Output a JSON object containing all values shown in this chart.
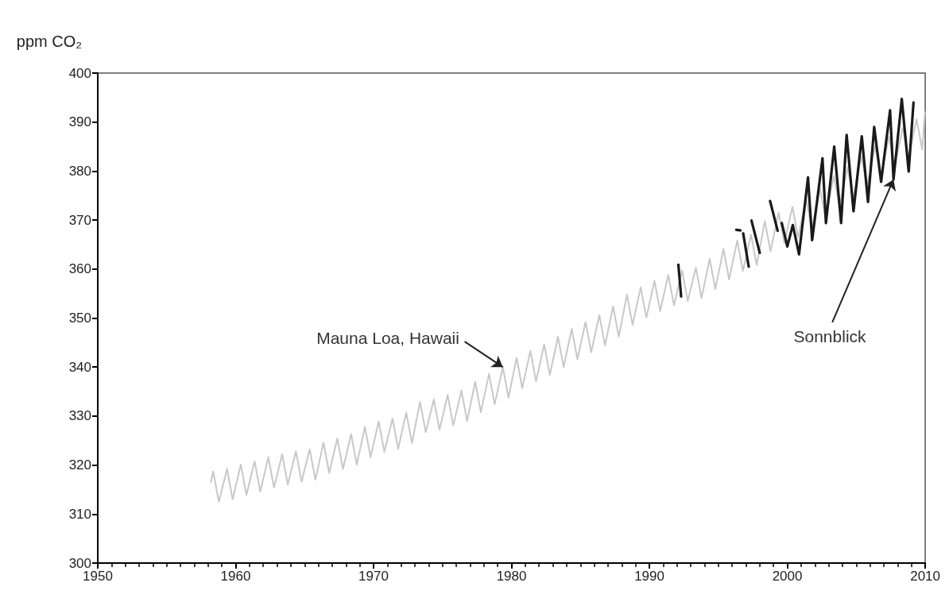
{
  "chart_data": {
    "type": "line",
    "ylabel": "ppm CO₂",
    "xlim": [
      1950,
      2010
    ],
    "xticks": [
      1950,
      1960,
      1970,
      1980,
      1990,
      2000,
      2010
    ],
    "ylim": [
      300,
      400
    ],
    "yticks": [
      300,
      310,
      320,
      330,
      340,
      350,
      360,
      370,
      380,
      390,
      400
    ],
    "grid": false,
    "marker": "none",
    "line_style": "solid",
    "series": [
      {
        "name": "Mauna Loa, Hawaii",
        "color": "#c8c8c8",
        "x": [
          1958.2,
          1958.37,
          1958.78,
          1959.37,
          1959.78,
          1960.37,
          1960.78,
          1961.37,
          1961.78,
          1962.37,
          1962.78,
          1963.37,
          1963.78,
          1964.37,
          1964.78,
          1965.37,
          1965.78,
          1966.37,
          1966.78,
          1967.37,
          1967.78,
          1968.37,
          1968.78,
          1969.37,
          1969.78,
          1970.37,
          1970.78,
          1971.37,
          1971.78,
          1972.37,
          1972.78,
          1973.37,
          1973.78,
          1974.37,
          1974.78,
          1975.37,
          1975.78,
          1976.37,
          1976.78,
          1977.37,
          1977.78,
          1978.37,
          1978.78,
          1979.37,
          1979.78,
          1980.37,
          1980.78,
          1981.37,
          1981.78,
          1982.37,
          1982.78,
          1983.37,
          1983.78,
          1984.37,
          1984.78,
          1985.37,
          1985.78,
          1986.37,
          1986.78,
          1987.37,
          1987.78,
          1988.37,
          1988.78,
          1989.37,
          1989.78,
          1990.37,
          1990.78,
          1991.37,
          1991.78,
          1992.37,
          1992.78,
          1993.37,
          1993.78,
          1994.37,
          1994.78,
          1995.37,
          1995.78,
          1996.37,
          1996.78,
          1997.37,
          1997.78,
          1998.37,
          1998.78,
          1999.37,
          1999.78,
          2000.37,
          2000.78,
          2001.37,
          2001.78,
          2002.37,
          2002.78,
          2003.37,
          2003.78,
          2004.37,
          2004.78,
          2005.37,
          2005.78,
          2006.37,
          2006.78,
          2007.37,
          2007.78,
          2008.37,
          2008.78,
          2009.37,
          2009.78,
          2009.98
        ],
        "values": [
          316.5,
          318.7,
          312.5,
          319.2,
          313.0,
          320.1,
          313.9,
          320.8,
          314.6,
          321.6,
          315.4,
          322.2,
          316.0,
          322.8,
          316.6,
          323.2,
          317.0,
          324.6,
          318.4,
          325.4,
          319.2,
          326.3,
          320.1,
          327.8,
          321.6,
          328.9,
          322.7,
          329.5,
          323.3,
          330.7,
          324.5,
          332.9,
          326.7,
          333.4,
          327.2,
          334.3,
          328.1,
          335.2,
          329.0,
          337.0,
          330.8,
          338.6,
          332.4,
          340.0,
          333.8,
          341.9,
          335.7,
          343.3,
          337.1,
          344.6,
          338.4,
          346.2,
          340.0,
          347.8,
          341.6,
          349.2,
          343.0,
          350.6,
          344.4,
          352.4,
          346.2,
          354.8,
          348.6,
          356.3,
          350.1,
          357.6,
          351.4,
          358.8,
          352.6,
          359.7,
          353.5,
          360.3,
          354.1,
          362.1,
          355.9,
          364.1,
          357.9,
          365.8,
          359.6,
          367.0,
          360.8,
          369.8,
          363.6,
          371.5,
          365.3,
          372.7,
          366.5,
          374.3,
          368.1,
          376.4,
          370.2,
          379.0,
          372.8,
          380.7,
          374.5,
          383.0,
          376.8,
          385.1,
          378.9,
          387.0,
          380.8,
          388.8,
          382.6,
          390.6,
          384.4,
          392.0
        ]
      },
      {
        "name": "Sonnblick",
        "color": "#1a1a1a",
        "x": [
          1992.1,
          1992.3,
          1994,
          1996.3,
          1996.6,
          1996.65,
          1996.8,
          1997.2,
          1997.3,
          1997.4,
          1998.0,
          1998.4,
          1998.75,
          1999.3,
          1999.45,
          1999.6,
          2000.0,
          2000.4,
          2000.85,
          2001.5,
          2001.8,
          2002.55,
          2002.8,
          2003.4,
          2003.9,
          2004.3,
          2004.8,
          2005.4,
          2005.85,
          2006.3,
          2006.8,
          2007.45,
          2007.7,
          2008.3,
          2008.8,
          2009.15
        ],
        "values": [
          360.9,
          354.4,
          null,
          368.0,
          367.9,
          null,
          367.3,
          360.5,
          null,
          369.9,
          363.3,
          null,
          373.9,
          367.8,
          null,
          369.4,
          364.6,
          369.0,
          363.0,
          378.7,
          365.9,
          382.6,
          369.4,
          385.0,
          369.4,
          387.4,
          371.8,
          387.1,
          373.7,
          389.0,
          377.8,
          392.4,
          378.3,
          394.7,
          379.9,
          394.0
        ]
      }
    ]
  }
}
